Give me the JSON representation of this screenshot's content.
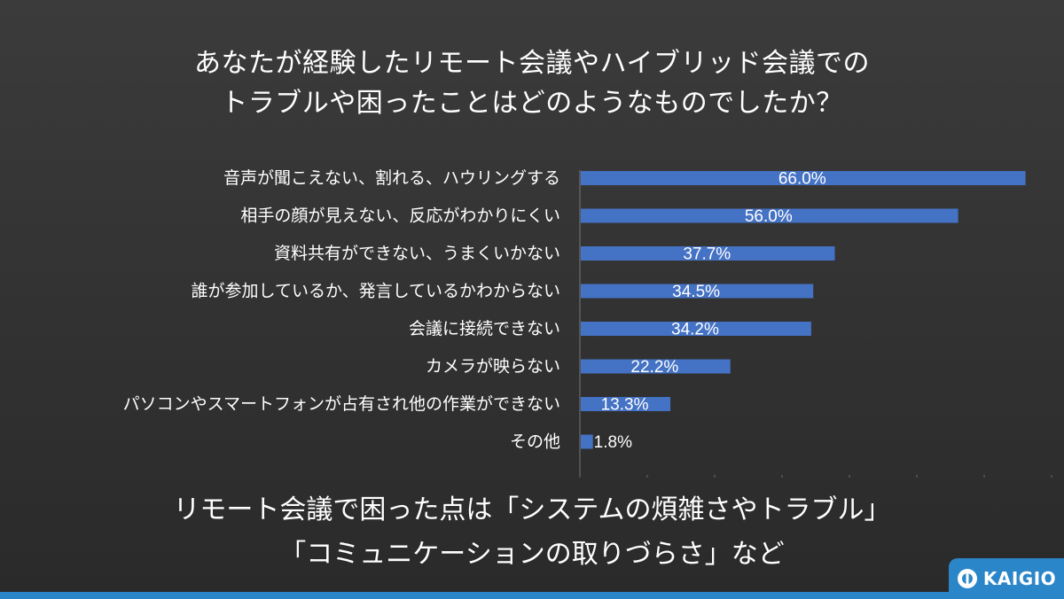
{
  "title": {
    "line1": "あなたが経験したリモート会議やハイブリッド会議での",
    "line2": "トラブルや困ったことはどのようなものでしたか？"
  },
  "summary": {
    "line1": "リモート会議で困った点は「システムの煩雑さやトラブル」",
    "line2": "「コミュニケーションの取りづらさ」など"
  },
  "logo": {
    "text": "KAIGIO",
    "bg_color": "#2a86c8",
    "icon": "kaigio-logo-icon"
  },
  "colors": {
    "bar": "#4472c4",
    "background": "#333333",
    "accent": "#2a86c8"
  },
  "chart_data": {
    "type": "bar",
    "orientation": "horizontal",
    "categories": [
      "音声が聞こえない、割れる、ハウリングする",
      "相手の顔が見えない、反応がわかりにくい",
      "資料共有ができない、うまくいかない",
      "誰が参加しているか、発言しているかわからない",
      "会議に接続できない",
      "カメラが映らない",
      "パソコンやスマートフォンが占有され他の作業ができない",
      "その他"
    ],
    "values": [
      66.0,
      56.0,
      37.7,
      34.5,
      34.2,
      22.2,
      13.3,
      1.8
    ],
    "value_labels": [
      "66.0%",
      "56.0%",
      "37.7%",
      "34.5%",
      "34.2%",
      "22.2%",
      "13.3%",
      "1.8%"
    ],
    "xlim": [
      0,
      70
    ],
    "grid": false,
    "legend": "none"
  }
}
